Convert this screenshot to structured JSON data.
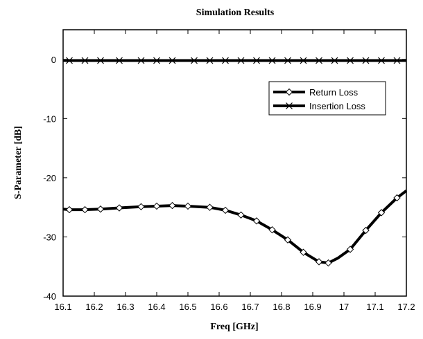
{
  "chart_data": {
    "type": "line",
    "title": "Simulation Results",
    "xlabel": "Freq [GHz]",
    "ylabel": "S-Parameter [dB]",
    "xlim": [
      16.1,
      17.2
    ],
    "ylim": [
      -40,
      5
    ],
    "x_ticks": [
      16.1,
      16.2,
      16.3,
      16.4,
      16.5,
      16.6,
      16.7,
      16.8,
      16.9,
      17,
      17.1,
      17.2
    ],
    "x_tick_labels": [
      "16.1",
      "16.2",
      "16.3",
      "16.4",
      "16.5",
      "16.6",
      "16.7",
      "16.8",
      "16.9",
      "17",
      "17.1",
      "17.2"
    ],
    "y_ticks": [
      0,
      -10,
      -20,
      -30,
      -40
    ],
    "y_tick_labels": [
      "0",
      "-10",
      "-20",
      "-30",
      "-40"
    ],
    "grid": false,
    "legend_position": "top-right",
    "series": [
      {
        "name": "Return Loss",
        "marker": "diamond",
        "color": "#000000",
        "x": [
          16.1,
          16.12,
          16.17,
          16.22,
          16.28,
          16.35,
          16.4,
          16.45,
          16.5,
          16.57,
          16.62,
          16.67,
          16.72,
          16.77,
          16.82,
          16.87,
          16.92,
          16.95,
          16.98,
          17.02,
          17.07,
          17.12,
          17.17,
          17.2
        ],
        "y": [
          -25.3,
          -25.4,
          -25.4,
          -25.3,
          -25.1,
          -24.9,
          -24.8,
          -24.7,
          -24.8,
          -25.0,
          -25.5,
          -26.3,
          -27.3,
          -28.8,
          -30.5,
          -32.6,
          -34.2,
          -34.4,
          -33.6,
          -32.1,
          -28.9,
          -25.9,
          -23.4,
          -22.2
        ],
        "marker_x": [
          16.12,
          16.17,
          16.22,
          16.28,
          16.35,
          16.4,
          16.45,
          16.5,
          16.57,
          16.62,
          16.67,
          16.72,
          16.77,
          16.82,
          16.87,
          16.92,
          16.95,
          17.02,
          17.07,
          17.12,
          17.17
        ]
      },
      {
        "name": "Insertion Loss",
        "marker": "x",
        "color": "#000000",
        "x": [
          16.1,
          16.2,
          16.3,
          16.4,
          16.5,
          16.6,
          16.7,
          16.8,
          16.9,
          17.0,
          17.1,
          17.2
        ],
        "y": [
          -0.2,
          -0.2,
          -0.2,
          -0.2,
          -0.2,
          -0.2,
          -0.2,
          -0.2,
          -0.2,
          -0.2,
          -0.2,
          -0.2
        ],
        "marker_x": [
          16.12,
          16.17,
          16.22,
          16.28,
          16.35,
          16.4,
          16.45,
          16.52,
          16.57,
          16.62,
          16.67,
          16.72,
          16.77,
          16.82,
          16.87,
          16.92,
          16.97,
          17.02,
          17.07,
          17.12,
          17.17
        ]
      }
    ]
  }
}
